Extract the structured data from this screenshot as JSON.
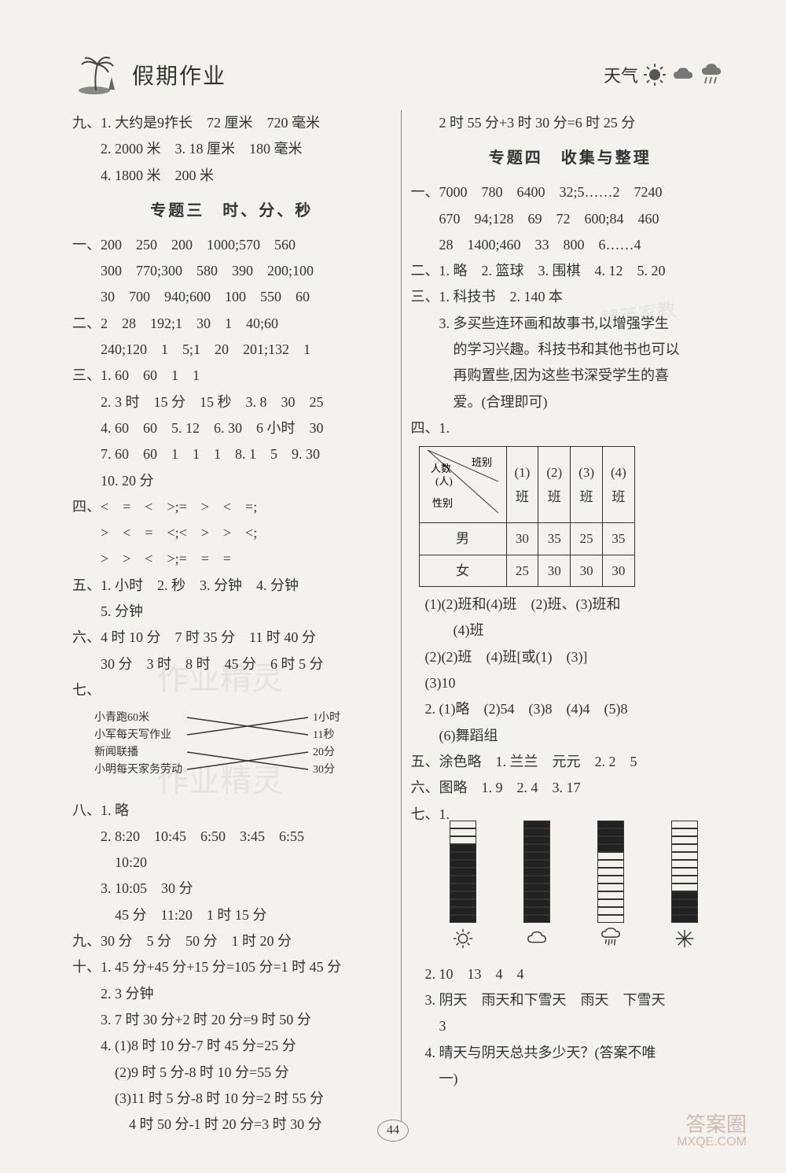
{
  "header": {
    "title": "假期作业",
    "weather_label": "天气"
  },
  "left": {
    "pre_lines": [
      "九、1. 大约是9拃长　72 厘米　720 毫米",
      "　　2. 2000 米　3. 18 厘米　180 毫米",
      "　　4. 1800 米　200 米"
    ],
    "section3_title": "专题三　时、分、秒",
    "s3": {
      "one": [
        "一、200　250　200　1000;570　560",
        "　　300　770;300　580　390　200;100",
        "　　30　700　940;600　100　550　60"
      ],
      "two": [
        "二、2　28　192;1　30　1　40;60",
        "　　240;120　1　5;1　20　201;132　1"
      ],
      "three": [
        "三、1. 60　60　1　1",
        "　　2. 3 时　15 分　15 秒　3. 8　30　25",
        "　　4. 60　60　5. 12　6. 30　6 小时　30",
        "　　7. 60　60　1　1　1　8. 1　5　9. 30",
        "　　10. 20 分"
      ],
      "four": [
        "四、<　=　<　>;=　>　<　=;",
        "　　>　<　=　<;<　>　>　<;",
        "　　>　>　<　>;=　=　="
      ],
      "five": [
        "五、1. 小时　2. 秒　3. 分钟　4. 分钟",
        "　　5. 分钟"
      ],
      "six": [
        "六、4 时 10 分　7 时 35 分　11 时 40 分",
        "　　30 分　3 时　8 时　45 分　6 时 5 分"
      ],
      "seven_label": "七、",
      "match": {
        "left": [
          "小青跑60米",
          "小军每天写作业",
          "新闻联播",
          "小明每天家务劳动"
        ],
        "right": [
          "1小时",
          "11秒",
          "20分",
          "30分"
        ]
      },
      "eight": [
        "八、1. 略",
        "　　2. 8:20　10:45　6:50　3:45　6:55",
        "　　　10:20",
        "　　3. 10:05　30 分",
        "　　　45 分　11:20　1 时 15 分"
      ],
      "nine": [
        "九、30 分　5 分　50 分　1 时 20 分"
      ],
      "ten": [
        "十、1. 45 分+45 分+15 分=105 分=1 时 45 分",
        "　　2. 3 分钟",
        "　　3. 7 时 30 分+2 时 20 分=9 时 50 分",
        "　　4. (1)8 时 10 分-7 时 45 分=25 分",
        "　　　(2)9 时 5 分-8 时 10 分=55 分",
        "　　　(3)11 时 5 分-8 时 10 分=2 时 55 分",
        "　　　　4 时 50 分-1 时 20 分=3 时 30 分"
      ]
    }
  },
  "right": {
    "cont_line": "　　2 时 55 分+3 时 30 分=6 时 25 分",
    "section4_title": "专题四　收集与整理",
    "s4": {
      "one": [
        "一、7000　780　6400　32;5……2　7240",
        "　　670　94;128　69　72　600;84　460",
        "　　28　1400;460　33　800　6……4"
      ],
      "two": [
        "二、1. 略　2. 篮球　3. 围棋　4. 12　5. 20"
      ],
      "three": [
        "三、1. 科技书　2. 140 本",
        "　　3. 多买些连环画和故事书,以增强学生",
        "　　　的学习兴趣。科技书和其他书也可以",
        "　　　再购置些,因为这些书深受学生的喜",
        "　　　爱。(合理即可)"
      ],
      "four_label": "四、1.",
      "table": {
        "diag_labels": {
          "top": "班别",
          "mid": "人数(人)",
          "bottom": "性别"
        },
        "cols": [
          "(1)班",
          "(2)班",
          "(3)班",
          "(4)班"
        ],
        "rows": [
          {
            "label": "男",
            "vals": [
              30,
              35,
              25,
              35
            ]
          },
          {
            "label": "女",
            "vals": [
              25,
              30,
              30,
              30
            ]
          }
        ]
      },
      "four_after": [
        "　(1)(2)班和(4)班　(2)班、(3)班和",
        "　　　(4)班",
        "　(2)(2)班　(4)班[或(1)　(3)]",
        "　(3)10",
        "　2. (1)略　(2)54　(3)8　(4)4　(5)8",
        "　　(6)舞蹈组"
      ],
      "five": [
        "五、涂色略　1. 兰兰　元元　2. 2　5"
      ],
      "six": [
        "六、图略　1. 9　2. 4　3. 17"
      ],
      "seven_label": "七、1.",
      "bars": {
        "max_segments": 13,
        "items": [
          {
            "icon": "sun",
            "filled": 10,
            "fill_from": "bottom"
          },
          {
            "icon": "cloud",
            "filled": 13,
            "fill_from": "bottom"
          },
          {
            "icon": "rain",
            "filled": 4,
            "fill_from": "top"
          },
          {
            "icon": "snow",
            "filled": 4,
            "fill_from": "bottom"
          }
        ],
        "colors": {
          "filled": "#222222",
          "empty": "#ffffff",
          "border": "#333333"
        }
      },
      "seven_after": [
        "　2. 10　13　4　4",
        "　3. 阴天　雨天和下雪天　雨天　下雪天",
        "　　3",
        "　4. 晴天与阴天总共多少天？(答案不唯",
        "　　一)"
      ]
    }
  },
  "page_number": "44",
  "footer_wm": {
    "l1": "答案圈",
    "l2": "MXQE.COM"
  }
}
